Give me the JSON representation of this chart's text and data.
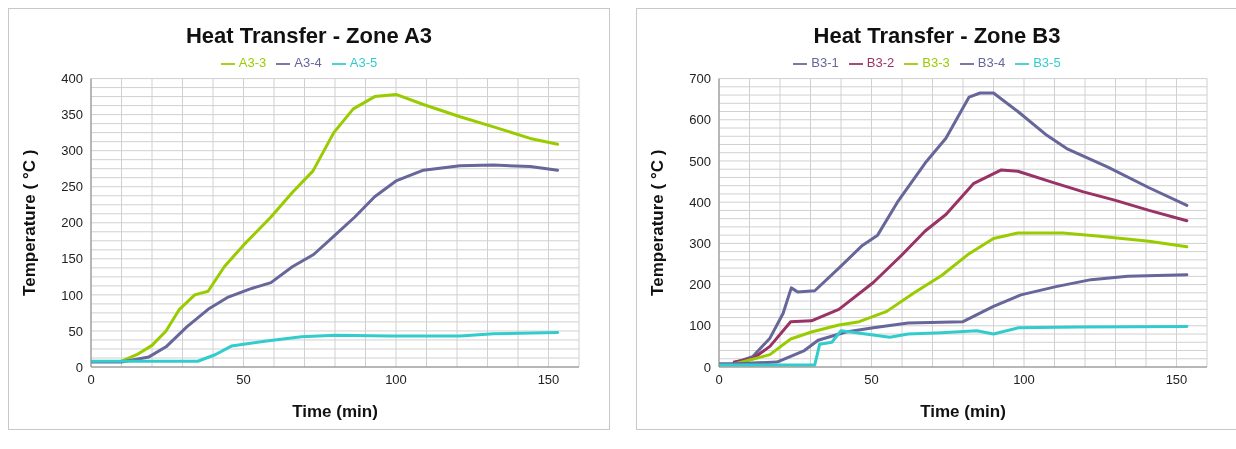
{
  "chart_data": [
    {
      "type": "line",
      "title": "Heat Transfer - Zone A3",
      "xlabel": "Time (min)",
      "ylabel": "Temperature ( °C )",
      "legend": "top",
      "grid": true,
      "marker": "none",
      "line_style": "solid",
      "xlim": [
        0,
        160
      ],
      "xticks": [
        0,
        {
          "value": 10,
          "label": null
        },
        {
          "value": 20,
          "label": null
        },
        {
          "value": 30,
          "label": null
        },
        {
          "value": 40,
          "label": null
        },
        50,
        {
          "value": 60,
          "label": null
        },
        {
          "value": 70,
          "label": null
        },
        {
          "value": 80,
          "label": null
        },
        {
          "value": 90,
          "label": null
        },
        100,
        {
          "value": 110,
          "label": null
        },
        {
          "value": 120,
          "label": null
        },
        {
          "value": 130,
          "label": null
        },
        {
          "value": 140,
          "label": null
        },
        150,
        {
          "value": 160,
          "label": null
        }
      ],
      "ylim": [
        0,
        400
      ],
      "yticks": [
        0,
        {
          "value": 12.5,
          "label": null
        },
        {
          "value": 25,
          "label": null
        },
        {
          "value": 37.5,
          "label": null
        },
        50,
        {
          "value": 62.5,
          "label": null
        },
        {
          "value": 75,
          "label": null
        },
        {
          "value": 87.5,
          "label": null
        },
        100,
        {
          "value": 112.5,
          "label": null
        },
        {
          "value": 125,
          "label": null
        },
        {
          "value": 137.5,
          "label": null
        },
        150,
        {
          "value": 162.5,
          "label": null
        },
        {
          "value": 175,
          "label": null
        },
        {
          "value": 187.5,
          "label": null
        },
        200,
        {
          "value": 212.5,
          "label": null
        },
        {
          "value": 225,
          "label": null
        },
        {
          "value": 237.5,
          "label": null
        },
        250,
        {
          "value": 262.5,
          "label": null
        },
        {
          "value": 275,
          "label": null
        },
        {
          "value": 287.5,
          "label": null
        },
        300,
        {
          "value": 312.5,
          "label": null
        },
        {
          "value": 325,
          "label": null
        },
        {
          "value": 337.5,
          "label": null
        },
        350,
        {
          "value": 362.5,
          "label": null
        },
        {
          "value": 375,
          "label": null
        },
        {
          "value": 387.5,
          "label": null
        },
        400
      ],
      "series": [
        {
          "name": "A3-3",
          "color": "#99cc00",
          "x": [
            10,
            15,
            20,
            24.6,
            29,
            34,
            38.4,
            43.7,
            50,
            59,
            66,
            72.8,
            79.6,
            86,
            93,
            100,
            109,
            121,
            132,
            144,
            153
          ],
          "values": [
            8,
            17,
            30,
            50,
            80,
            100,
            105,
            139,
            169,
            208,
            242,
            272,
            325,
            358,
            375,
            378,
            364,
            347,
            333,
            317,
            309
          ]
        },
        {
          "name": "A3-4",
          "color": "#66669a",
          "x": [
            0,
            10,
            19,
            24.6,
            31.5,
            38.4,
            45,
            52,
            59,
            66,
            73,
            80,
            86.5,
            93,
            100,
            109,
            121,
            132,
            144,
            153
          ],
          "values": [
            7,
            7,
            14,
            28,
            56,
            80,
            97,
            108,
            117,
            139,
            156,
            183,
            208,
            236,
            258,
            273,
            279,
            280,
            278,
            273
          ]
        },
        {
          "name": "A3-5",
          "color": "#33cccc",
          "x": [
            0,
            20,
            35,
            40.7,
            46,
            57.6,
            69,
            80,
            98,
            121,
            132,
            153
          ],
          "values": [
            8,
            8,
            8,
            17,
            29,
            36,
            42,
            44,
            43,
            43,
            46,
            48
          ]
        }
      ]
    },
    {
      "type": "line",
      "title": "Heat Transfer - Zone B3",
      "xlabel": "Time (min)",
      "ylabel": "Temperature ( °C )",
      "legend": "top",
      "grid": true,
      "marker": "none",
      "line_style": "solid",
      "xlim": [
        0,
        160
      ],
      "xticks": [
        0,
        {
          "value": 10,
          "label": null
        },
        {
          "value": 20,
          "label": null
        },
        {
          "value": 30,
          "label": null
        },
        {
          "value": 40,
          "label": null
        },
        50,
        {
          "value": 60,
          "label": null
        },
        {
          "value": 70,
          "label": null
        },
        {
          "value": 80,
          "label": null
        },
        {
          "value": 90,
          "label": null
        },
        100,
        {
          "value": 110,
          "label": null
        },
        {
          "value": 120,
          "label": null
        },
        {
          "value": 130,
          "label": null
        },
        {
          "value": 140,
          "label": null
        },
        150,
        {
          "value": 160,
          "label": null
        }
      ],
      "ylim": [
        0,
        700
      ],
      "yticks": [
        0,
        {
          "value": 20,
          "label": null
        },
        {
          "value": 40,
          "label": null
        },
        {
          "value": 60,
          "label": null
        },
        {
          "value": 80,
          "label": null
        },
        100,
        {
          "value": 120,
          "label": null
        },
        {
          "value": 140,
          "label": null
        },
        {
          "value": 160,
          "label": null
        },
        {
          "value": 180,
          "label": null
        },
        200,
        {
          "value": 220,
          "label": null
        },
        {
          "value": 240,
          "label": null
        },
        {
          "value": 260,
          "label": null
        },
        {
          "value": 280,
          "label": null
        },
        300,
        {
          "value": 320,
          "label": null
        },
        {
          "value": 340,
          "label": null
        },
        {
          "value": 360,
          "label": null
        },
        {
          "value": 380,
          "label": null
        },
        400,
        {
          "value": 420,
          "label": null
        },
        {
          "value": 440,
          "label": null
        },
        {
          "value": 460,
          "label": null
        },
        {
          "value": 480,
          "label": null
        },
        500,
        {
          "value": 520,
          "label": null
        },
        {
          "value": 540,
          "label": null
        },
        {
          "value": 560,
          "label": null
        },
        {
          "value": 580,
          "label": null
        },
        600,
        {
          "value": 620,
          "label": null
        },
        {
          "value": 640,
          "label": null
        },
        {
          "value": 660,
          "label": null
        },
        {
          "value": 680,
          "label": null
        },
        700
      ],
      "series": [
        {
          "name": "B3-1",
          "color": "#66669a",
          "x": [
            4.9,
            11,
            16.7,
            21,
            23.7,
            25.8,
            31.4,
            39.3,
            47,
            52,
            58.5,
            67.6,
            74.4,
            82,
            85.6,
            90,
            98,
            107,
            114,
            127.5,
            141,
            153.4
          ],
          "values": [
            10,
            25,
            70,
            130,
            192,
            182,
            185,
            240,
            295,
            320,
            400,
            495,
            555,
            655,
            665,
            665,
            620,
            565,
            530,
            485,
            435,
            392
          ]
        },
        {
          "name": "B3-2",
          "color": "#993366",
          "x": [
            5,
            11,
            16.7,
            23.5,
            30.3,
            39.3,
            50.6,
            59.7,
            67.6,
            74.4,
            83.4,
            92.4,
            98,
            109.4,
            119.5,
            129.7,
            141,
            153.4
          ],
          "values": [
            12,
            20,
            50,
            110,
            112,
            140,
            205,
            270,
            330,
            370,
            445,
            478,
            475,
            448,
            425,
            405,
            380,
            355
          ]
        },
        {
          "name": "B3-3",
          "color": "#99cc00",
          "x": [
            5.4,
            16.7,
            23.5,
            30.3,
            39.3,
            46,
            55,
            64,
            73,
            82,
            90,
            98,
            112.7,
            124,
            141,
            153.4
          ],
          "values": [
            8,
            30,
            68,
            85,
            102,
            110,
            135,
            180,
            222,
            275,
            312,
            325,
            325,
            318,
            305,
            292
          ]
        },
        {
          "name": "B3-4",
          "color": "#66669a",
          "x": [
            0,
            5.4,
            19,
            28,
            32.5,
            41.6,
            50.6,
            62,
            80,
            90,
            99,
            110.5,
            122,
            134,
            153.4
          ],
          "values": [
            8,
            8,
            12,
            40,
            65,
            85,
            95,
            107,
            110,
            147,
            175,
            195,
            212,
            220,
            224
          ]
        },
        {
          "name": "B3-5",
          "color": "#33cccc",
          "x": [
            0,
            31.4,
            33,
            37,
            40,
            45,
            56,
            62,
            73,
            84.5,
            90,
            98,
            118,
            153.4
          ],
          "values": [
            5,
            5,
            55,
            60,
            88,
            83,
            72,
            80,
            83,
            88,
            80,
            95,
            97,
            98
          ]
        }
      ]
    }
  ]
}
